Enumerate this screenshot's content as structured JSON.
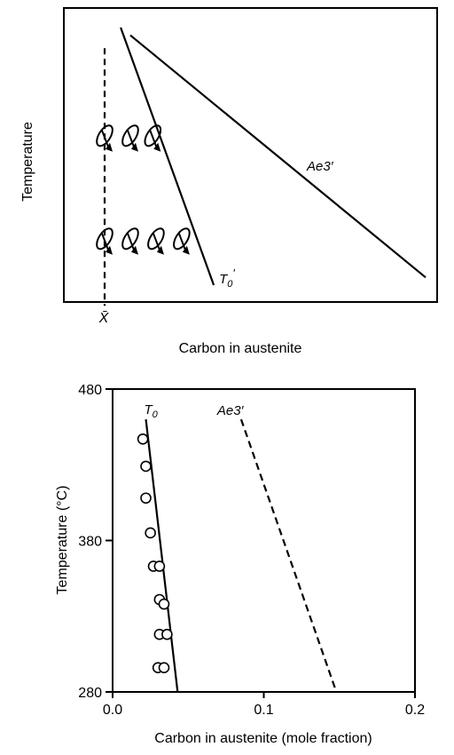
{
  "chart_data": [
    {
      "type": "line",
      "title": "",
      "xlabel": "Carbon in austenite",
      "ylabel": "Temperature",
      "axis_ticks": "none",
      "marker_label": "X̄",
      "series": [
        {
          "name": "Ae3′",
          "style": "solid",
          "points": [
            [
              0.08,
              0.97
            ],
            [
              1.0,
              0.03
            ]
          ]
        },
        {
          "name": "T0′",
          "style": "solid",
          "points": [
            [
              0.05,
              1.0
            ],
            [
              0.34,
              0.0
            ]
          ]
        },
        {
          "name": "",
          "style": "dashed",
          "points": [
            [
              0.0,
              0.92
            ],
            [
              0.0,
              -0.08
            ]
          ]
        }
      ],
      "symbols": {
        "icon": "ellipse-with-arrow-icon",
        "rows": [
          {
            "y": 0.58,
            "x": [
              0.0,
              0.08,
              0.15
            ]
          },
          {
            "y": 0.18,
            "x": [
              0.0,
              0.08,
              0.16,
              0.24
            ]
          }
        ]
      }
    },
    {
      "type": "scatter",
      "title": "",
      "xlabel": "Carbon in austenite (mole fraction)",
      "ylabel": "Temperature (°C)",
      "xlim": [
        0.0,
        0.2
      ],
      "ylim": [
        280,
        480
      ],
      "xticks": [
        "0.0",
        "0.1",
        "0.2"
      ],
      "yticks": [
        "280",
        "380",
        "480"
      ],
      "series": [
        {
          "name": "T0",
          "kind": "line",
          "style": "solid",
          "points": [
            [
              0.022,
              460
            ],
            [
              0.043,
              280
            ]
          ]
        },
        {
          "name": "Ae3′",
          "kind": "line",
          "style": "dashed",
          "points": [
            [
              0.085,
              460
            ],
            [
              0.148,
              280
            ]
          ]
        },
        {
          "name": "",
          "kind": "points",
          "marker": "open-circle",
          "points": [
            [
              0.02,
              447
            ],
            [
              0.022,
              429
            ],
            [
              0.022,
              408
            ],
            [
              0.025,
              385
            ],
            [
              0.027,
              363
            ],
            [
              0.031,
              363
            ],
            [
              0.031,
              341
            ],
            [
              0.034,
              338
            ],
            [
              0.031,
              318
            ],
            [
              0.036,
              318
            ],
            [
              0.03,
              296
            ],
            [
              0.034,
              296
            ]
          ]
        }
      ]
    }
  ]
}
